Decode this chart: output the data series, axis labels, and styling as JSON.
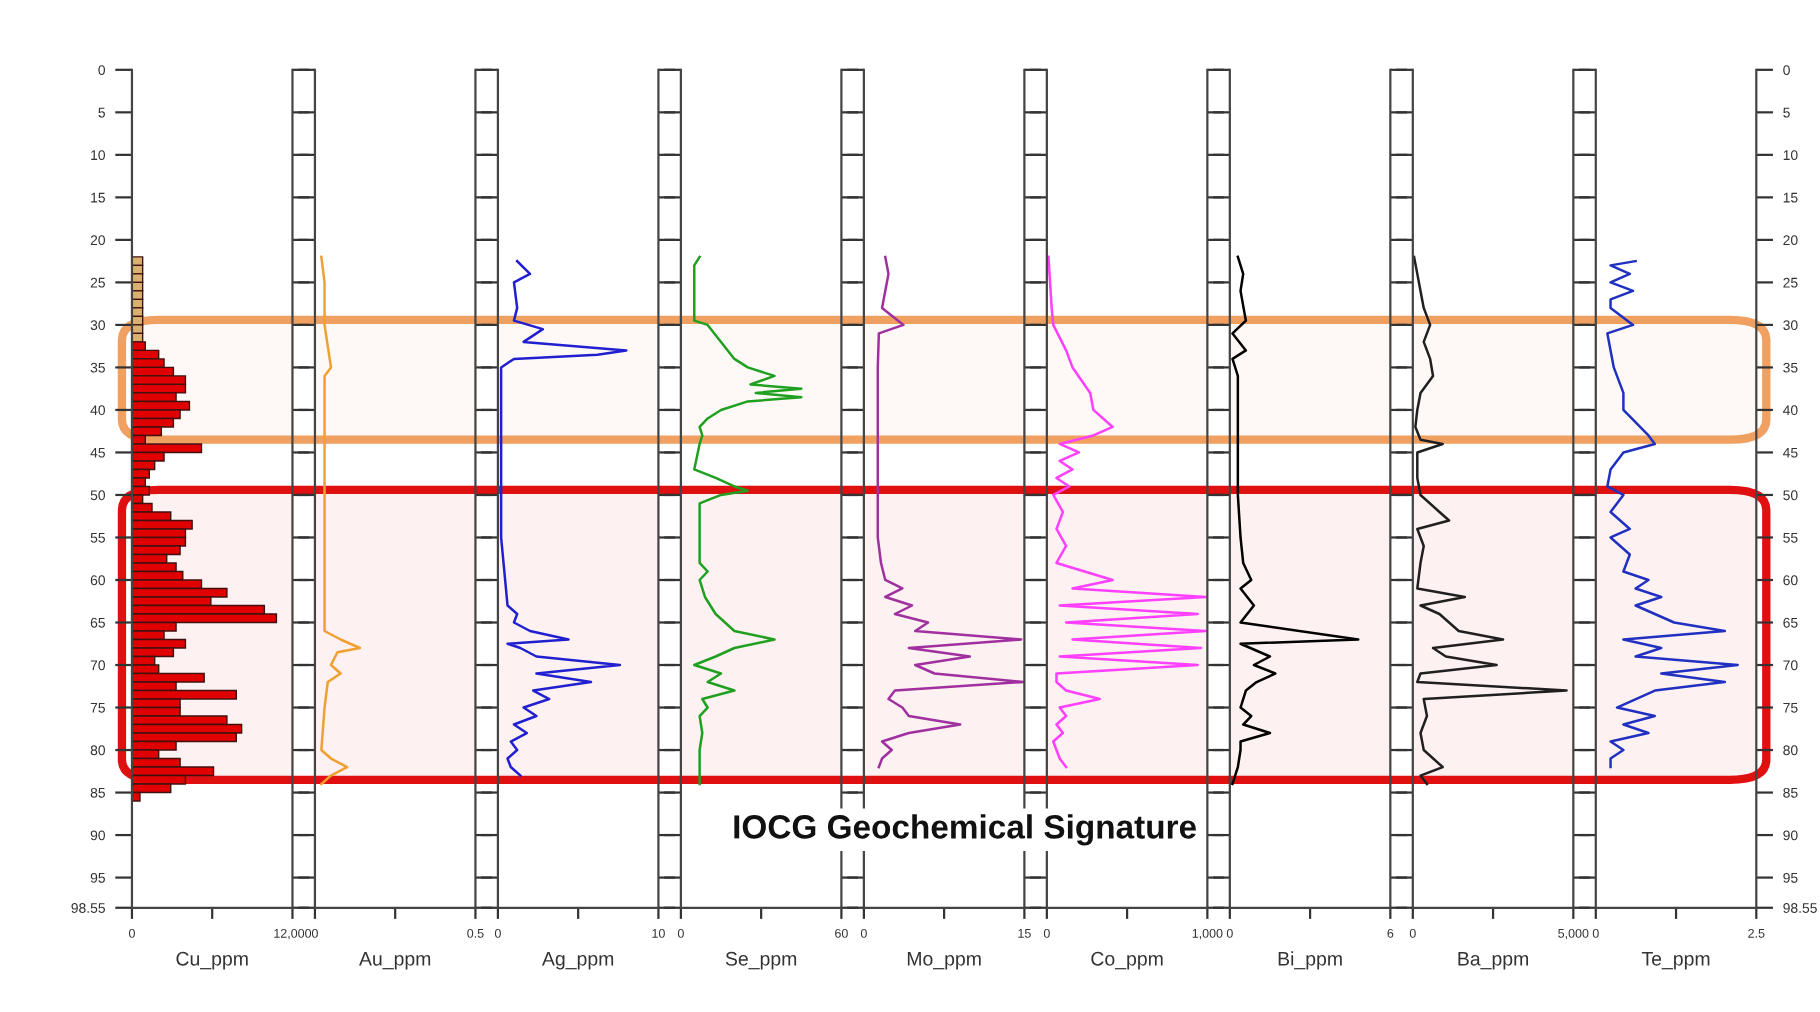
{
  "chart_data": [
    {
      "type": "bar",
      "orientation": "horizontal",
      "xlabel": "Cu_ppm",
      "annotations": [
        "IOCG Geochemical Signature"
      ],
      "bands": [
        {
          "axis": "y",
          "from": 29.4,
          "to": 43.5,
          "color": "#f0a060",
          "label": null
        },
        {
          "axis": "y",
          "from": 49.4,
          "to": 83.5,
          "color": "#e01010",
          "label": null
        }
      ],
      "x": [
        22.5,
        23.5,
        24.5,
        25.5,
        26.5,
        27.5,
        28.5,
        29.5,
        30.5,
        31.5,
        32.5,
        33.5,
        34.5,
        35.5,
        36.5,
        37.5,
        38.5,
        39.5,
        40.5,
        41.5,
        42.5,
        43.5,
        44.5,
        45.5,
        46.5,
        47.5,
        48.5,
        49.5,
        50.5,
        51.5,
        52.5,
        53.5,
        54.5,
        55.5,
        56.5,
        57.5,
        58.5,
        59.5,
        60.5,
        61.5,
        62.5,
        63.5,
        64.5,
        65.5,
        66.5,
        67.5,
        68.5,
        69.5,
        70.5,
        71.5,
        72.5,
        73.5,
        74.5,
        75.5,
        76.5,
        77.5,
        78.5,
        79.5,
        80.5,
        81.5,
        82.5,
        83.5,
        84.5,
        85.5
      ],
      "values": [
        800,
        800,
        800,
        800,
        800,
        800,
        800,
        800,
        800,
        800,
        1000,
        2000,
        2400,
        3100,
        4000,
        4000,
        3300,
        4300,
        3600,
        3100,
        2200,
        1000,
        5200,
        2400,
        1700,
        1300,
        1000,
        1300,
        800,
        1500,
        2900,
        4500,
        4000,
        4000,
        3600,
        2600,
        3300,
        3800,
        5200,
        7100,
        5900,
        9900,
        10800,
        3300,
        2400,
        4000,
        3100,
        1700,
        2000,
        5400,
        3300,
        7800,
        3600,
        3600,
        7100,
        8200,
        7800,
        3300,
        2000,
        3600,
        6100,
        4000,
        2900,
        600
      ],
      "colors": [
        "#d8b070",
        "#d8b070",
        "#d8b070",
        "#d8b070",
        "#d8b070",
        "#d8b070",
        "#d8b070",
        "#d8b070",
        "#d8b070",
        "#d8b070",
        "#e00000",
        "#e00000",
        "#e00000",
        "#e00000",
        "#e00000",
        "#e00000",
        "#e00000",
        "#e00000",
        "#e00000",
        "#e00000",
        "#e00000",
        "#e00000",
        "#e00000",
        "#e00000",
        "#e00000",
        "#e00000",
        "#e00000",
        "#e00000",
        "#e00000",
        "#e00000",
        "#e00000",
        "#e00000",
        "#e00000",
        "#e00000",
        "#e00000",
        "#e00000",
        "#e00000",
        "#e00000",
        "#e00000",
        "#e00000",
        "#e00000",
        "#e00000",
        "#e00000",
        "#e00000",
        "#e00000",
        "#e00000",
        "#e00000",
        "#e00000",
        "#e00000",
        "#e00000",
        "#e00000",
        "#e00000",
        "#e00000",
        "#e00000",
        "#e00000",
        "#e00000",
        "#e00000",
        "#e00000",
        "#e00000",
        "#e00000",
        "#e00000",
        "#e00000",
        "#e00000",
        "#e00000"
      ],
      "xlim": [
        0,
        12000
      ],
      "xticks": [
        0,
        {
          "value": 6000,
          "label": null
        },
        {
          "value": 12000,
          "label": "12,000"
        }
      ],
      "ylim": [
        98.55,
        0
      ],
      "yticks": [
        0,
        5,
        10,
        15,
        20,
        25,
        30,
        35,
        40,
        45,
        50,
        55,
        60,
        65,
        70,
        75,
        80,
        85,
        90,
        95,
        98.55
      ]
    },
    {
      "type": "line",
      "orientation": "horizontal",
      "xlabel": "Au_ppm",
      "tick_labels": "x",
      "bands": [
        {
          "axis": "y",
          "from": 29.4,
          "to": 43.5,
          "color": "#f0a060",
          "label": null
        },
        {
          "axis": "y",
          "from": 49.4,
          "to": 83.5,
          "color": "#e01010",
          "label": null
        }
      ],
      "series": [
        {
          "color": "#f0a030",
          "x": [
            22,
            25,
            30,
            35,
            36,
            50,
            66,
            67,
            68,
            68.5,
            70,
            71,
            72,
            75,
            80,
            81,
            82,
            83,
            84
          ],
          "values": [
            0.02,
            0.03,
            0.03,
            0.05,
            0.03,
            0.03,
            0.03,
            0.08,
            0.14,
            0.07,
            0.05,
            0.08,
            0.04,
            0.03,
            0.02,
            0.05,
            0.1,
            0.05,
            0.02
          ]
        }
      ],
      "xlim": [
        0,
        0.5
      ],
      "xticks": [
        0,
        {
          "value": 0.25,
          "label": null
        },
        0.5
      ],
      "ylim": [
        98.55,
        0
      ],
      "yticks": [
        0,
        5,
        10,
        15,
        20,
        25,
        30,
        35,
        40,
        45,
        50,
        55,
        60,
        65,
        70,
        75,
        80,
        85,
        90,
        95,
        98.55
      ]
    },
    {
      "type": "line",
      "orientation": "horizontal",
      "xlabel": "Ag_ppm",
      "tick_labels": "x",
      "bands": [
        {
          "axis": "y",
          "from": 29.4,
          "to": 43.5,
          "color": "#f0a060",
          "label": null
        },
        {
          "axis": "y",
          "from": 49.4,
          "to": 83.5,
          "color": "#e01010",
          "label": null
        }
      ],
      "series": [
        {
          "color": "#2020d0",
          "x": [
            22.5,
            24,
            25,
            28,
            29.5,
            30.5,
            32,
            33,
            33.5,
            34,
            35,
            45,
            55,
            63,
            64,
            65,
            66,
            67,
            67.5,
            68,
            69,
            70,
            71,
            72,
            73,
            74,
            75,
            76,
            77,
            78,
            79,
            80,
            81,
            82,
            83
          ],
          "values": [
            1.2,
            2.0,
            1.0,
            1.2,
            1.0,
            2.8,
            1.6,
            8.0,
            6.2,
            1.0,
            0.2,
            0.2,
            0.2,
            0.6,
            1.2,
            1.0,
            2.0,
            4.4,
            0.6,
            1.4,
            2.4,
            7.6,
            2.4,
            5.8,
            2.2,
            3.2,
            1.6,
            2.4,
            1.0,
            1.8,
            0.8,
            1.2,
            0.6,
            0.8,
            1.4
          ]
        }
      ],
      "xlim": [
        0,
        10
      ],
      "xticks": [
        0,
        {
          "value": 5,
          "label": null
        },
        10
      ],
      "ylim": [
        98.55,
        0
      ],
      "yticks": [
        0,
        5,
        10,
        15,
        20,
        25,
        30,
        35,
        40,
        45,
        50,
        55,
        60,
        65,
        70,
        75,
        80,
        85,
        90,
        95,
        98.55
      ]
    },
    {
      "type": "line",
      "orientation": "horizontal",
      "xlabel": "Se_ppm",
      "tick_labels": "x",
      "bands": [
        {
          "axis": "y",
          "from": 29.4,
          "to": 43.5,
          "color": "#f0a060",
          "label": null
        },
        {
          "axis": "y",
          "from": 49.4,
          "to": 83.5,
          "color": "#e01010",
          "label": null
        }
      ],
      "series": [
        {
          "color": "#20a020",
          "x": [
            22,
            23,
            28,
            29.5,
            30,
            32,
            34,
            35,
            36,
            37,
            37.5,
            38,
            38.5,
            39,
            40,
            41,
            42,
            43,
            44,
            47,
            48,
            49,
            49.5,
            50,
            51,
            56,
            58,
            59,
            60,
            62,
            64,
            66,
            67,
            68,
            69,
            70,
            71,
            72,
            73,
            74,
            75,
            76,
            78,
            80,
            84
          ],
          "values": [
            7,
            5,
            5,
            5,
            10,
            15,
            20,
            25,
            35,
            26,
            45,
            28,
            45,
            25,
            15,
            10,
            7,
            8,
            7,
            5,
            13,
            20,
            25,
            15,
            7,
            7,
            7,
            10,
            7,
            9,
            13,
            20,
            35,
            20,
            13,
            5,
            15,
            10,
            20,
            8,
            10,
            7,
            8,
            7,
            7
          ]
        }
      ],
      "xlim": [
        0,
        60
      ],
      "xticks": [
        0,
        {
          "value": 30,
          "label": null
        },
        60
      ],
      "ylim": [
        98.55,
        0
      ],
      "yticks": [
        0,
        5,
        10,
        15,
        20,
        25,
        30,
        35,
        40,
        45,
        50,
        55,
        60,
        65,
        70,
        75,
        80,
        85,
        90,
        95,
        98.55
      ]
    },
    {
      "type": "line",
      "orientation": "horizontal",
      "xlabel": "Mo_ppm",
      "tick_labels": "x",
      "bands": [
        {
          "axis": "y",
          "from": 29.4,
          "to": 43.5,
          "color": "#f0a060",
          "label": null
        },
        {
          "axis": "y",
          "from": 49.4,
          "to": 83.5,
          "color": "#e01010",
          "label": null
        }
      ],
      "series": [
        {
          "color": "#a030a0",
          "x": [
            22,
            24,
            26,
            28,
            30,
            31,
            35,
            45,
            55,
            58,
            60,
            61,
            62,
            63,
            64,
            65,
            66,
            67,
            68,
            69,
            70,
            71,
            72,
            73,
            74,
            75,
            76,
            77,
            78,
            79,
            80,
            81,
            82
          ],
          "values": [
            2.0,
            2.3,
            2.0,
            1.7,
            3.7,
            1.4,
            1.3,
            1.3,
            1.3,
            1.6,
            2.0,
            3.6,
            2.0,
            4.5,
            2.9,
            6.0,
            4.8,
            14.7,
            4.2,
            9.9,
            4.8,
            6.6,
            14.9,
            2.9,
            2.3,
            3.6,
            4.2,
            9.0,
            4.2,
            1.7,
            2.6,
            1.7,
            1.4
          ]
        }
      ],
      "xlim": [
        0,
        15
      ],
      "xticks": [
        0,
        {
          "value": 7.5,
          "label": null
        },
        15
      ],
      "ylim": [
        98.55,
        0
      ],
      "yticks": [
        0,
        5,
        10,
        15,
        20,
        25,
        30,
        35,
        40,
        45,
        50,
        55,
        60,
        65,
        70,
        75,
        80,
        85,
        90,
        95,
        98.55
      ]
    },
    {
      "type": "line",
      "orientation": "horizontal",
      "xlabel": "Co_ppm",
      "tick_labels": "x",
      "bands": [
        {
          "axis": "y",
          "from": 29.4,
          "to": 43.5,
          "color": "#f0a060",
          "label": null
        },
        {
          "axis": "y",
          "from": 49.4,
          "to": 83.5,
          "color": "#e01010",
          "label": null
        }
      ],
      "series": [
        {
          "color": "#ff40ff",
          "x": [
            22,
            25,
            28,
            30,
            33,
            35,
            38,
            40,
            42,
            43,
            44,
            45,
            46,
            47,
            48,
            49,
            50,
            52,
            54,
            56,
            58,
            60,
            61,
            62,
            63,
            64,
            65,
            66,
            67,
            68,
            69,
            70,
            71,
            72,
            73,
            74,
            75,
            76,
            77,
            78,
            79,
            81,
            82
          ],
          "values": [
            10,
            20,
            30,
            40,
            120,
            160,
            270,
            290,
            410,
            290,
            80,
            200,
            80,
            160,
            60,
            140,
            40,
            100,
            60,
            120,
            60,
            410,
            160,
            990,
            80,
            940,
            120,
            990,
            160,
            960,
            80,
            940,
            60,
            60,
            120,
            330,
            80,
            120,
            60,
            100,
            40,
            80,
            120
          ]
        }
      ],
      "xlim": [
        0,
        1000
      ],
      "xticks": [
        0,
        {
          "value": 500,
          "label": null
        },
        {
          "value": 1000,
          "label": "1,000"
        }
      ],
      "ylim": [
        98.55,
        0
      ],
      "yticks": [
        0,
        5,
        10,
        15,
        20,
        25,
        30,
        35,
        40,
        45,
        50,
        55,
        60,
        65,
        70,
        75,
        80,
        85,
        90,
        95,
        98.55
      ]
    },
    {
      "type": "line",
      "orientation": "horizontal",
      "xlabel": "Bi_ppm",
      "tick_labels": "x",
      "bands": [
        {
          "axis": "y",
          "from": 29.4,
          "to": 43.5,
          "color": "#f0a060",
          "label": null
        },
        {
          "axis": "y",
          "from": 49.4,
          "to": 83.5,
          "color": "#e01010",
          "label": null
        }
      ],
      "series": [
        {
          "color": "#000000",
          "x": [
            22,
            24,
            26,
            29.5,
            31,
            33,
            34,
            36,
            45,
            50,
            55,
            58,
            60,
            61,
            63,
            65,
            67,
            67.5,
            69,
            70,
            71,
            72,
            73,
            75,
            76,
            77,
            78,
            79,
            80,
            82,
            84
          ],
          "values": [
            0.3,
            0.5,
            0.4,
            0.6,
            0.1,
            0.6,
            0.1,
            0.3,
            0.3,
            0.3,
            0.4,
            0.5,
            0.8,
            0.4,
            0.9,
            0.4,
            4.8,
            0.4,
            1.5,
            0.9,
            1.7,
            1.0,
            0.6,
            0.4,
            0.8,
            0.5,
            1.5,
            0.4,
            0.4,
            0.3,
            0.1
          ]
        }
      ],
      "xlim": [
        0,
        6
      ],
      "xticks": [
        0,
        {
          "value": 3,
          "label": null
        },
        6
      ],
      "ylim": [
        98.55,
        0
      ],
      "yticks": [
        0,
        5,
        10,
        15,
        20,
        25,
        30,
        35,
        40,
        45,
        50,
        55,
        60,
        65,
        70,
        75,
        80,
        85,
        90,
        95,
        98.55
      ]
    },
    {
      "type": "line",
      "orientation": "horizontal",
      "xlabel": "Ba_ppm",
      "tick_labels": "x",
      "bands": [
        {
          "axis": "y",
          "from": 29.4,
          "to": 43.5,
          "color": "#f0a060",
          "label": null
        },
        {
          "axis": "y",
          "from": 49.4,
          "to": 83.5,
          "color": "#e01010",
          "label": null
        }
      ],
      "series": [
        {
          "color": "#202020",
          "x": [
            22,
            24,
            26,
            28,
            30,
            32,
            34,
            36,
            38,
            40,
            42,
            43.5,
            44,
            45,
            48,
            50,
            52,
            53,
            54,
            56,
            58,
            61,
            62,
            63,
            64,
            66,
            67,
            68,
            69,
            70,
            71,
            72,
            73,
            74,
            76,
            78,
            80,
            82,
            83,
            84
          ],
          "values": [
            40,
            140,
            240,
            340,
            540,
            340,
            540,
            630,
            240,
            140,
            80,
            240,
            930,
            140,
            140,
            240,
            830,
            1130,
            140,
            340,
            240,
            140,
            1620,
            240,
            830,
            1430,
            2810,
            630,
            1030,
            2610,
            240,
            140,
            4790,
            340,
            440,
            240,
            340,
            930,
            240,
            440
          ]
        }
      ],
      "xlim": [
        0,
        5000
      ],
      "xticks": [
        0,
        {
          "value": 2500,
          "label": null
        },
        {
          "value": 5000,
          "label": "5,000"
        }
      ],
      "ylim": [
        98.55,
        0
      ],
      "yticks": [
        0,
        5,
        10,
        15,
        20,
        25,
        30,
        35,
        40,
        45,
        50,
        55,
        60,
        65,
        70,
        75,
        80,
        85,
        90,
        95,
        98.55
      ]
    },
    {
      "type": "line",
      "orientation": "horizontal",
      "xlabel": "Te_ppm",
      "bands": [
        {
          "axis": "y",
          "from": 29.4,
          "to": 43.5,
          "color": "#f0a060",
          "label": null
        },
        {
          "axis": "y",
          "from": 49.4,
          "to": 83.5,
          "color": "#e01010",
          "label": null
        }
      ],
      "series": [
        {
          "color": "#2030c0",
          "x": [
            22.5,
            23,
            24,
            25,
            26,
            27,
            28,
            30,
            31,
            35,
            38,
            40,
            43,
            44,
            45,
            47,
            49,
            50,
            52,
            54,
            55,
            57,
            59,
            60,
            61,
            62,
            63,
            65,
            66,
            67,
            68,
            69,
            70,
            71,
            72,
            73,
            75,
            76,
            77,
            78,
            79,
            80,
            81,
            82
          ],
          "values": [
            0.62,
            0.23,
            0.53,
            0.23,
            0.58,
            0.23,
            0.23,
            0.58,
            0.18,
            0.28,
            0.43,
            0.43,
            0.82,
            0.92,
            0.43,
            0.23,
            0.18,
            0.43,
            0.23,
            0.53,
            0.23,
            0.53,
            0.43,
            0.82,
            0.62,
            1.02,
            0.62,
            1.22,
            2.01,
            0.43,
            1.02,
            0.62,
            2.21,
            1.02,
            2.01,
            0.92,
            0.33,
            0.92,
            0.43,
            0.82,
            0.23,
            0.43,
            0.23,
            0.23
          ]
        }
      ],
      "xlim": [
        0,
        2.5
      ],
      "xticks": [
        0,
        {
          "value": 1.25,
          "label": null
        },
        2.5
      ],
      "ylim": [
        98.55,
        0
      ],
      "yticks": [
        0,
        5,
        10,
        15,
        20,
        25,
        30,
        35,
        40,
        45,
        50,
        55,
        60,
        65,
        70,
        75,
        80,
        85,
        90,
        95,
        98.55
      ]
    }
  ]
}
